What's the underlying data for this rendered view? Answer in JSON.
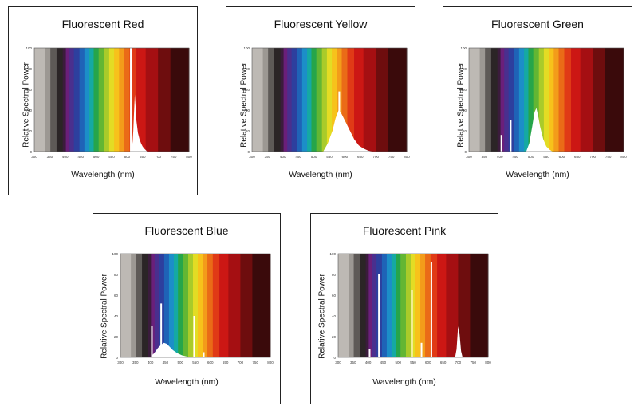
{
  "chart_data": [
    {
      "type": "area",
      "title": "Fluorescent Red",
      "xlabel": "Wavelength (nm)",
      "ylabel": "Relative Spectral Power",
      "xlim": [
        300,
        800
      ],
      "ylim": [
        0,
        100
      ],
      "xticks": [
        "300",
        "350",
        "400",
        "450",
        "500",
        "550",
        "600",
        "650",
        "700",
        "750",
        "800"
      ],
      "yticks": [
        "0",
        "20",
        "40",
        "60",
        "80",
        "100"
      ],
      "series": [
        {
          "x": [
            610,
            615,
            618,
            620,
            622,
            625,
            630,
            635,
            640,
            645,
            650,
            655,
            660,
            665
          ],
          "y": [
            0,
            3,
            10,
            20,
            35,
            55,
            30,
            18,
            12,
            8,
            5,
            3,
            1.5,
            0
          ]
        }
      ],
      "lines": [
        {
          "x": 612,
          "y": 100
        }
      ]
    },
    {
      "type": "area",
      "title": "Fluorescent Yellow",
      "xlabel": "Wavelength (nm)",
      "ylabel": "Relative Spectral Power",
      "xlim": [
        300,
        800
      ],
      "ylim": [
        0,
        100
      ],
      "xticks": [
        "300",
        "350",
        "400",
        "450",
        "500",
        "550",
        "600",
        "650",
        "700",
        "750",
        "800"
      ],
      "yticks": [
        "0",
        "20",
        "40",
        "60",
        "80",
        "100"
      ],
      "series": [
        {
          "x": [
            530,
            545,
            560,
            570,
            580,
            590,
            600,
            610,
            620,
            630,
            645,
            660,
            675,
            690
          ],
          "y": [
            0,
            8,
            20,
            32,
            40,
            36,
            30,
            24,
            18,
            12,
            6,
            3,
            1,
            0
          ]
        }
      ],
      "lines": [
        {
          "x": 582,
          "y": 58
        }
      ]
    },
    {
      "type": "area",
      "title": "Fluorescent Green",
      "xlabel": "Wavelength (nm)",
      "ylabel": "Relative Spectral Power",
      "xlim": [
        300,
        800
      ],
      "ylim": [
        0,
        100
      ],
      "xticks": [
        "300",
        "350",
        "400",
        "450",
        "500",
        "550",
        "600",
        "650",
        "700",
        "750",
        "800"
      ],
      "yticks": [
        "0",
        "20",
        "40",
        "60",
        "80",
        "100"
      ],
      "series": [
        {
          "x": [
            485,
            495,
            505,
            512,
            518,
            524,
            530,
            540,
            550,
            560,
            570
          ],
          "y": [
            0,
            8,
            25,
            38,
            42,
            34,
            24,
            12,
            5,
            2,
            0
          ]
        }
      ],
      "lines": [
        {
          "x": 435,
          "y": 30
        },
        {
          "x": 405,
          "y": 16
        }
      ]
    },
    {
      "type": "area",
      "title": "Fluorescent Blue",
      "xlabel": "Wavelength (nm)",
      "ylabel": "Relative Spectral Power",
      "xlim": [
        300,
        800
      ],
      "ylim": [
        0,
        100
      ],
      "xticks": [
        "300",
        "350",
        "400",
        "450",
        "500",
        "550",
        "600",
        "650",
        "700",
        "750",
        "800"
      ],
      "yticks": [
        "0",
        "20",
        "40",
        "60",
        "80",
        "100"
      ],
      "series": [
        {
          "x": [
            400,
            415,
            425,
            435,
            445,
            455,
            465,
            475,
            490,
            505,
            520,
            540
          ],
          "y": [
            0,
            5,
            9,
            12,
            14,
            13,
            10,
            7,
            4,
            2,
            1,
            0
          ]
        }
      ],
      "lines": [
        {
          "x": 436,
          "y": 52
        },
        {
          "x": 405,
          "y": 30
        },
        {
          "x": 546,
          "y": 40
        },
        {
          "x": 578,
          "y": 5
        }
      ]
    },
    {
      "type": "area",
      "title": "Fluorescent Pink",
      "xlabel": "Wavelength (nm)",
      "ylabel": "Relative Spectral Power",
      "xlim": [
        300,
        800
      ],
      "ylim": [
        0,
        100
      ],
      "xticks": [
        "300",
        "350",
        "400",
        "450",
        "500",
        "550",
        "600",
        "650",
        "700",
        "750",
        "800"
      ],
      "yticks": [
        "0",
        "20",
        "40",
        "60",
        "80",
        "100"
      ],
      "series": [
        {
          "x": [
            690,
            695,
            700,
            705,
            710,
            715
          ],
          "y": [
            0,
            8,
            30,
            22,
            6,
            0
          ]
        }
      ],
      "lines": [
        {
          "x": 436,
          "y": 80
        },
        {
          "x": 546,
          "y": 65
        },
        {
          "x": 611,
          "y": 92
        },
        {
          "x": 405,
          "y": 8
        },
        {
          "x": 578,
          "y": 14
        }
      ]
    }
  ]
}
